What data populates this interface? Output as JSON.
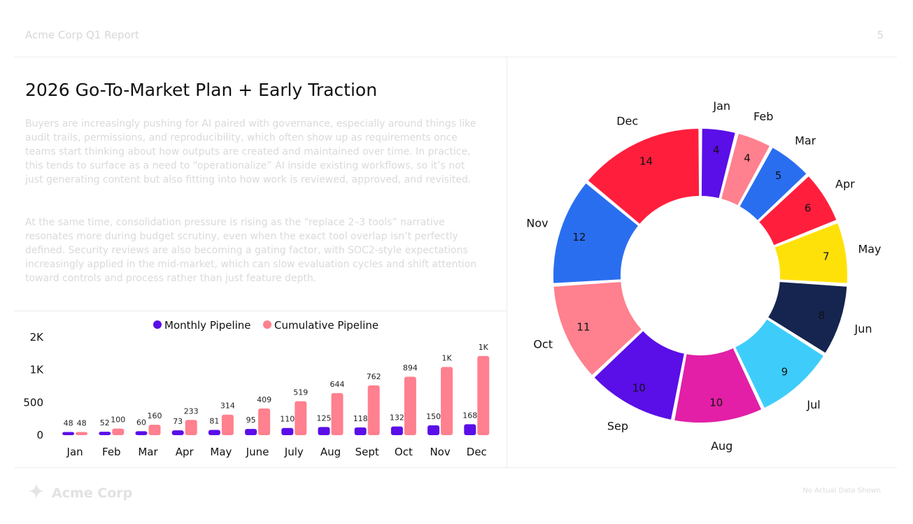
{
  "header": {
    "report_title": "Acme Corp Q1 Report",
    "page_number": "5"
  },
  "main": {
    "title": "2026 Go-To-Market Plan + Early Traction",
    "paragraphs": [
      "Buyers are increasingly pushing for AI paired with governance, especially around things like audit trails, permissions, and reproducibility, which often show up as requirements once teams start thinking about how outputs are created and maintained over time. In practice, this tends to surface as a need to “operationalize” AI inside existing workflows, so it’s not just generating content but also fitting into how work is reviewed, approved, and revisited.",
      "At the same time, consolidation pressure is rising as the “replace 2–3 tools” narrative resonates more during budget scrutiny, even when the exact tool overlap isn’t perfectly defined. Security reviews are also becoming a gating factor, with SOC2-style expectations increasingly applied in the mid-market, which can slow evaluation cycles and shift attention toward controls and process rather than just feature depth."
    ]
  },
  "footer": {
    "brand": "Acme Corp",
    "note": "No Actual Data Shown"
  },
  "chart_data": [
    {
      "type": "bar",
      "categories": [
        "Jan",
        "Feb",
        "Mar",
        "Apr",
        "May",
        "June",
        "July",
        "Aug",
        "Sept",
        "Oct",
        "Nov",
        "Dec"
      ],
      "series": [
        {
          "name": "Monthly Pipeline",
          "color": "#5a0ee8",
          "values": [
            48,
            52,
            60,
            73,
            81,
            95,
            110,
            125,
            118,
            132,
            150,
            168
          ],
          "labels": [
            "48",
            "52",
            "60",
            "73",
            "81",
            "95",
            "110",
            "125",
            "118",
            "132",
            "150",
            "168"
          ]
        },
        {
          "name": "Cumulative Pipeline",
          "color": "#ff808e",
          "values": [
            48,
            100,
            160,
            233,
            314,
            409,
            519,
            644,
            762,
            894,
            1044,
            1212
          ],
          "labels": [
            "48",
            "100",
            "160",
            "233",
            "314",
            "409",
            "519",
            "644",
            "762",
            "894",
            "1K",
            "1K"
          ]
        }
      ],
      "yticks": [
        "0",
        "500",
        "1K",
        "2K"
      ],
      "ytick_values": [
        0,
        500,
        1000,
        1500
      ],
      "ylim": [
        0,
        1500
      ],
      "legend": "top-center",
      "grid": false
    },
    {
      "type": "pie",
      "donut": true,
      "labels": [
        "Jan",
        "Feb",
        "Mar",
        "Apr",
        "May",
        "Jun",
        "Jul",
        "Aug",
        "Sep",
        "Oct",
        "Nov",
        "Dec"
      ],
      "values": [
        4,
        4,
        5,
        6,
        7,
        8,
        9,
        10,
        10,
        11,
        12,
        14
      ],
      "colors": [
        "#5a0ee8",
        "#ff808e",
        "#2a6ef0",
        "#ff1f3d",
        "#ffe10a",
        "#15254f",
        "#3ecdfa",
        "#e21fa6",
        "#5a0ee8",
        "#ff808e",
        "#2a6ef0",
        "#ff1f3d"
      ]
    }
  ]
}
